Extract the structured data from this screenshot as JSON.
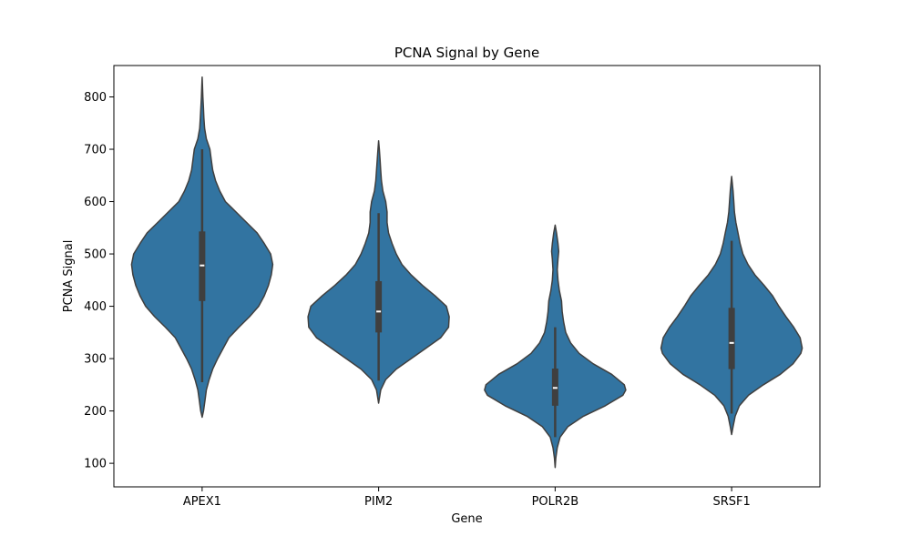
{
  "chart_data": {
    "type": "violin",
    "title": "PCNA Signal by Gene",
    "xlabel": "Gene",
    "ylabel": "PCNA Signal",
    "ylim": [
      55,
      860
    ],
    "yticks": [
      100,
      200,
      300,
      400,
      500,
      600,
      700,
      800
    ],
    "categories": [
      "APEX1",
      "PIM2",
      "POLR2B",
      "SRSF1"
    ],
    "fill_color": "#3274a1",
    "line_color": "#3f3f3f",
    "violins": [
      {
        "category": "APEX1",
        "min": 188,
        "max": 838,
        "whisker_low": 255,
        "whisker_high": 700,
        "q1": 410,
        "median": 478,
        "q3": 543,
        "profile": [
          [
            188,
            0.0
          ],
          [
            200,
            0.02
          ],
          [
            220,
            0.04
          ],
          [
            240,
            0.06
          ],
          [
            260,
            0.1
          ],
          [
            280,
            0.15
          ],
          [
            300,
            0.22
          ],
          [
            320,
            0.3
          ],
          [
            340,
            0.38
          ],
          [
            360,
            0.52
          ],
          [
            380,
            0.67
          ],
          [
            400,
            0.8
          ],
          [
            420,
            0.88
          ],
          [
            440,
            0.94
          ],
          [
            460,
            0.98
          ],
          [
            480,
            1.0
          ],
          [
            500,
            0.97
          ],
          [
            520,
            0.88
          ],
          [
            540,
            0.78
          ],
          [
            560,
            0.63
          ],
          [
            580,
            0.48
          ],
          [
            600,
            0.33
          ],
          [
            620,
            0.25
          ],
          [
            640,
            0.19
          ],
          [
            660,
            0.15
          ],
          [
            680,
            0.13
          ],
          [
            700,
            0.11
          ],
          [
            720,
            0.06
          ],
          [
            740,
            0.035
          ],
          [
            760,
            0.025
          ],
          [
            780,
            0.018
          ],
          [
            800,
            0.01
          ],
          [
            820,
            0.005
          ],
          [
            838,
            0.0
          ]
        ]
      },
      {
        "category": "PIM2",
        "min": 215,
        "max": 716,
        "whisker_low": 258,
        "whisker_high": 578,
        "q1": 350,
        "median": 390,
        "q3": 448,
        "profile": [
          [
            215,
            0.0
          ],
          [
            240,
            0.03
          ],
          [
            260,
            0.1
          ],
          [
            280,
            0.25
          ],
          [
            300,
            0.46
          ],
          [
            320,
            0.67
          ],
          [
            340,
            0.88
          ],
          [
            360,
            0.99
          ],
          [
            380,
            1.0
          ],
          [
            400,
            0.96
          ],
          [
            420,
            0.8
          ],
          [
            440,
            0.62
          ],
          [
            460,
            0.46
          ],
          [
            480,
            0.33
          ],
          [
            500,
            0.25
          ],
          [
            520,
            0.19
          ],
          [
            540,
            0.14
          ],
          [
            560,
            0.12
          ],
          [
            580,
            0.12
          ],
          [
            600,
            0.1
          ],
          [
            620,
            0.06
          ],
          [
            640,
            0.04
          ],
          [
            660,
            0.03
          ],
          [
            680,
            0.02
          ],
          [
            700,
            0.01
          ],
          [
            716,
            0.0
          ]
        ]
      },
      {
        "category": "POLR2B",
        "min": 92,
        "max": 555,
        "whisker_low": 150,
        "whisker_high": 360,
        "q1": 210,
        "median": 244,
        "q3": 281,
        "profile": [
          [
            92,
            0.0
          ],
          [
            110,
            0.01
          ],
          [
            130,
            0.03
          ],
          [
            150,
            0.07
          ],
          [
            170,
            0.18
          ],
          [
            190,
            0.4
          ],
          [
            210,
            0.71
          ],
          [
            230,
            0.96
          ],
          [
            240,
            1.0
          ],
          [
            250,
            0.98
          ],
          [
            270,
            0.8
          ],
          [
            290,
            0.54
          ],
          [
            310,
            0.34
          ],
          [
            330,
            0.22
          ],
          [
            350,
            0.15
          ],
          [
            370,
            0.12
          ],
          [
            390,
            0.1
          ],
          [
            410,
            0.09
          ],
          [
            430,
            0.06
          ],
          [
            450,
            0.04
          ],
          [
            470,
            0.03
          ],
          [
            490,
            0.04
          ],
          [
            505,
            0.05
          ],
          [
            520,
            0.04
          ],
          [
            540,
            0.02
          ],
          [
            555,
            0.0
          ]
        ]
      },
      {
        "category": "SRSF1",
        "min": 155,
        "max": 648,
        "whisker_low": 195,
        "whisker_high": 525,
        "q1": 280,
        "median": 330,
        "q3": 397,
        "profile": [
          [
            155,
            0.0
          ],
          [
            170,
            0.02
          ],
          [
            190,
            0.05
          ],
          [
            210,
            0.11
          ],
          [
            230,
            0.24
          ],
          [
            250,
            0.45
          ],
          [
            270,
            0.69
          ],
          [
            290,
            0.87
          ],
          [
            310,
            0.98
          ],
          [
            320,
            1.0
          ],
          [
            340,
            0.97
          ],
          [
            360,
            0.88
          ],
          [
            380,
            0.77
          ],
          [
            400,
            0.67
          ],
          [
            420,
            0.58
          ],
          [
            440,
            0.46
          ],
          [
            460,
            0.33
          ],
          [
            480,
            0.23
          ],
          [
            500,
            0.16
          ],
          [
            520,
            0.12
          ],
          [
            540,
            0.09
          ],
          [
            560,
            0.06
          ],
          [
            580,
            0.04
          ],
          [
            600,
            0.03
          ],
          [
            620,
            0.02
          ],
          [
            648,
            0.0
          ]
        ]
      }
    ]
  }
}
